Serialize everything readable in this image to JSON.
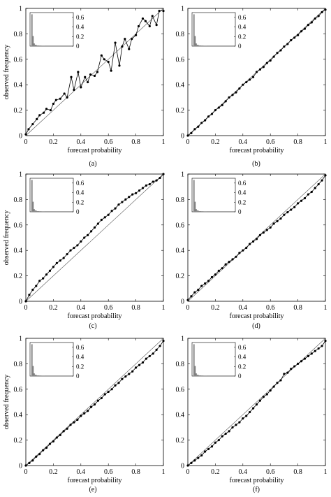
{
  "figure": {
    "panels": [
      {
        "caption": "(a)",
        "xlabel": "forecast probability",
        "ylabel": "observed frequency",
        "inset_ticks": [
          "0.6",
          "0.4",
          "0.2",
          "0"
        ],
        "chart_data": {
          "type": "line",
          "xlim": [
            0,
            1
          ],
          "ylim": [
            0,
            1
          ],
          "xticks": [
            "0",
            "0.2",
            "0.4",
            "0.6",
            "0.8",
            "1"
          ],
          "yticks": [
            "0",
            "0.2",
            "0.4",
            "0.6",
            "0.8",
            "1"
          ],
          "reference_line": "diagonal",
          "series": [
            {
              "x": [
                0.0,
                0.02,
                0.05,
                0.08,
                0.1,
                0.13,
                0.15,
                0.18,
                0.2,
                0.22,
                0.25,
                0.28,
                0.3,
                0.33,
                0.35,
                0.38,
                0.4,
                0.43,
                0.45,
                0.47,
                0.5,
                0.52,
                0.55,
                0.57,
                0.6,
                0.62,
                0.65,
                0.68,
                0.7,
                0.72,
                0.75,
                0.77,
                0.8,
                0.82,
                0.85,
                0.87,
                0.9,
                0.92,
                0.95,
                0.97,
                1.0
              ],
              "y": [
                0.01,
                0.05,
                0.09,
                0.13,
                0.16,
                0.18,
                0.21,
                0.2,
                0.25,
                0.28,
                0.29,
                0.33,
                0.3,
                0.46,
                0.36,
                0.5,
                0.38,
                0.46,
                0.42,
                0.48,
                0.47,
                0.5,
                0.63,
                0.6,
                0.58,
                0.51,
                0.73,
                0.55,
                0.7,
                0.76,
                0.68,
                0.76,
                0.79,
                0.86,
                0.92,
                0.9,
                0.86,
                0.94,
                0.87,
                0.98,
                0.98
              ]
            }
          ],
          "inset": {
            "type": "histogram",
            "ylim": [
              0,
              0.7
            ],
            "yticks": [
              "0",
              "0.2",
              "0.4",
              "0.6"
            ]
          }
        }
      },
      {
        "caption": "(b)",
        "xlabel": "forecast probability",
        "ylabel": "",
        "inset_ticks": [
          "0.6",
          "0.4",
          "0.2",
          "0"
        ],
        "chart_data": {
          "type": "line",
          "xlim": [
            0,
            1
          ],
          "ylim": [
            0,
            1
          ],
          "xticks": [
            "0",
            "0.2",
            "0.4",
            "0.6",
            "0.8",
            "1"
          ],
          "yticks": [
            "0",
            "0.2",
            "0.4",
            "0.6",
            "0.8",
            "1"
          ],
          "reference_line": "diagonal",
          "series": [
            {
              "x": [
                0.0,
                0.025,
                0.05,
                0.075,
                0.1,
                0.125,
                0.15,
                0.175,
                0.2,
                0.225,
                0.25,
                0.275,
                0.3,
                0.325,
                0.35,
                0.375,
                0.4,
                0.425,
                0.45,
                0.475,
                0.5,
                0.525,
                0.55,
                0.575,
                0.6,
                0.625,
                0.65,
                0.675,
                0.7,
                0.725,
                0.75,
                0.775,
                0.8,
                0.825,
                0.85,
                0.875,
                0.9,
                0.925,
                0.95,
                0.975,
                1.0
              ],
              "y": [
                0.0,
                0.02,
                0.05,
                0.07,
                0.1,
                0.12,
                0.15,
                0.17,
                0.2,
                0.22,
                0.24,
                0.27,
                0.3,
                0.32,
                0.34,
                0.37,
                0.4,
                0.42,
                0.44,
                0.46,
                0.5,
                0.52,
                0.54,
                0.57,
                0.59,
                0.62,
                0.65,
                0.67,
                0.7,
                0.72,
                0.75,
                0.77,
                0.79,
                0.82,
                0.84,
                0.87,
                0.89,
                0.92,
                0.94,
                0.97,
                0.99
              ]
            }
          ],
          "inset": {
            "type": "histogram",
            "ylim": [
              0,
              0.7
            ],
            "yticks": [
              "0",
              "0.2",
              "0.4",
              "0.6"
            ]
          }
        }
      },
      {
        "caption": "(c)",
        "xlabel": "forecast probability",
        "ylabel": "observed frequency",
        "inset_ticks": [
          "0.6",
          "0.4",
          "0.2",
          "0"
        ],
        "chart_data": {
          "type": "line",
          "xlim": [
            0,
            1
          ],
          "ylim": [
            0,
            1
          ],
          "xticks": [
            "0",
            "0.2",
            "0.4",
            "0.6",
            "0.8",
            "1"
          ],
          "yticks": [
            "0",
            "0.2",
            "0.4",
            "0.6",
            "0.8",
            "1"
          ],
          "reference_line": "diagonal",
          "series": [
            {
              "x": [
                0.0,
                0.025,
                0.05,
                0.075,
                0.1,
                0.125,
                0.15,
                0.175,
                0.2,
                0.225,
                0.25,
                0.275,
                0.3,
                0.325,
                0.35,
                0.375,
                0.4,
                0.425,
                0.45,
                0.475,
                0.5,
                0.525,
                0.55,
                0.575,
                0.6,
                0.625,
                0.65,
                0.675,
                0.7,
                0.725,
                0.75,
                0.775,
                0.8,
                0.825,
                0.85,
                0.875,
                0.9,
                0.925,
                0.95,
                0.975,
                1.0
              ],
              "y": [
                0.0,
                0.05,
                0.09,
                0.12,
                0.16,
                0.18,
                0.21,
                0.24,
                0.27,
                0.3,
                0.32,
                0.34,
                0.37,
                0.4,
                0.42,
                0.44,
                0.47,
                0.5,
                0.52,
                0.55,
                0.58,
                0.61,
                0.64,
                0.66,
                0.68,
                0.71,
                0.73,
                0.76,
                0.78,
                0.8,
                0.82,
                0.84,
                0.85,
                0.87,
                0.89,
                0.91,
                0.92,
                0.94,
                0.95,
                0.97,
                1.0
              ]
            }
          ],
          "inset": {
            "type": "histogram",
            "ylim": [
              0,
              0.7
            ],
            "yticks": [
              "0",
              "0.2",
              "0.4",
              "0.6"
            ]
          }
        }
      },
      {
        "caption": "(d)",
        "xlabel": "forecast probability",
        "ylabel": "",
        "inset_ticks": [
          "0.6",
          "0.4",
          "0.2",
          "0"
        ],
        "chart_data": {
          "type": "line",
          "xlim": [
            0,
            1
          ],
          "ylim": [
            0,
            1
          ],
          "xticks": [
            "0",
            "0.2",
            "0.4",
            "0.6",
            "0.8",
            "1"
          ],
          "yticks": [
            "0",
            "0.2",
            "0.4",
            "0.6",
            "0.8",
            "1"
          ],
          "reference_line": "diagonal",
          "series": [
            {
              "x": [
                0.0,
                0.025,
                0.05,
                0.075,
                0.1,
                0.125,
                0.15,
                0.175,
                0.2,
                0.225,
                0.25,
                0.275,
                0.3,
                0.325,
                0.35,
                0.375,
                0.4,
                0.425,
                0.45,
                0.475,
                0.5,
                0.525,
                0.55,
                0.575,
                0.6,
                0.625,
                0.65,
                0.675,
                0.7,
                0.725,
                0.75,
                0.775,
                0.8,
                0.825,
                0.85,
                0.875,
                0.9,
                0.925,
                0.95,
                0.975,
                1.0
              ],
              "y": [
                0.01,
                0.04,
                0.07,
                0.09,
                0.12,
                0.14,
                0.16,
                0.19,
                0.21,
                0.24,
                0.26,
                0.29,
                0.31,
                0.33,
                0.35,
                0.38,
                0.4,
                0.42,
                0.45,
                0.47,
                0.49,
                0.52,
                0.54,
                0.56,
                0.58,
                0.61,
                0.63,
                0.65,
                0.68,
                0.7,
                0.72,
                0.74,
                0.77,
                0.79,
                0.81,
                0.84,
                0.86,
                0.89,
                0.92,
                0.95,
                0.99
              ]
            }
          ],
          "inset": {
            "type": "histogram",
            "ylim": [
              0,
              0.7
            ],
            "yticks": [
              "0",
              "0.2",
              "0.4",
              "0.6"
            ]
          }
        }
      },
      {
        "caption": "(e)",
        "xlabel": "forecast probability",
        "ylabel": "observed frequency",
        "inset_ticks": [
          "0.6",
          "0.4",
          "0.2",
          "0"
        ],
        "chart_data": {
          "type": "line",
          "xlim": [
            0,
            1
          ],
          "ylim": [
            0,
            1
          ],
          "xticks": [
            "0",
            "0.2",
            "0.4",
            "0.6",
            "0.8",
            "1"
          ],
          "yticks": [
            "0",
            "0.2",
            "0.4",
            "0.6",
            "0.8",
            "1"
          ],
          "reference_line": "diagonal",
          "series": [
            {
              "x": [
                0.0,
                0.025,
                0.05,
                0.075,
                0.1,
                0.125,
                0.15,
                0.175,
                0.2,
                0.225,
                0.25,
                0.275,
                0.3,
                0.325,
                0.35,
                0.375,
                0.4,
                0.425,
                0.45,
                0.475,
                0.5,
                0.525,
                0.55,
                0.575,
                0.6,
                0.625,
                0.65,
                0.675,
                0.7,
                0.725,
                0.75,
                0.775,
                0.8,
                0.825,
                0.85,
                0.875,
                0.9,
                0.925,
                0.95,
                0.975,
                1.0
              ],
              "y": [
                0.0,
                0.02,
                0.04,
                0.07,
                0.09,
                0.12,
                0.14,
                0.17,
                0.19,
                0.22,
                0.24,
                0.27,
                0.29,
                0.32,
                0.34,
                0.36,
                0.39,
                0.41,
                0.43,
                0.46,
                0.48,
                0.51,
                0.53,
                0.56,
                0.58,
                0.6,
                0.63,
                0.65,
                0.68,
                0.7,
                0.72,
                0.74,
                0.77,
                0.79,
                0.81,
                0.84,
                0.86,
                0.88,
                0.91,
                0.94,
                0.98
              ]
            }
          ],
          "inset": {
            "type": "histogram",
            "ylim": [
              0,
              0.7
            ],
            "yticks": [
              "0",
              "0.2",
              "0.4",
              "0.6"
            ]
          }
        }
      },
      {
        "caption": "(f)",
        "xlabel": "forecast probability",
        "ylabel": "",
        "inset_ticks": [
          "0.6",
          "0.4",
          "0.2",
          "0"
        ],
        "chart_data": {
          "type": "line",
          "xlim": [
            0,
            1
          ],
          "ylim": [
            0,
            1
          ],
          "xticks": [
            "0",
            "0.2",
            "0.4",
            "0.6",
            "0.8",
            "1"
          ],
          "yticks": [
            "0",
            "0.2",
            "0.4",
            "0.6",
            "0.8",
            "1"
          ],
          "reference_line": "diagonal",
          "series": [
            {
              "x": [
                0.0,
                0.025,
                0.05,
                0.075,
                0.1,
                0.125,
                0.15,
                0.175,
                0.2,
                0.225,
                0.25,
                0.275,
                0.3,
                0.325,
                0.35,
                0.375,
                0.4,
                0.425,
                0.45,
                0.475,
                0.5,
                0.525,
                0.55,
                0.575,
                0.6,
                0.625,
                0.65,
                0.675,
                0.7,
                0.725,
                0.75,
                0.775,
                0.8,
                0.825,
                0.85,
                0.875,
                0.9,
                0.925,
                0.95,
                0.975,
                1.0
              ],
              "y": [
                0.0,
                0.02,
                0.04,
                0.06,
                0.08,
                0.11,
                0.13,
                0.15,
                0.18,
                0.2,
                0.23,
                0.25,
                0.27,
                0.3,
                0.32,
                0.34,
                0.37,
                0.39,
                0.42,
                0.45,
                0.48,
                0.51,
                0.54,
                0.56,
                0.59,
                0.62,
                0.65,
                0.67,
                0.72,
                0.73,
                0.76,
                0.78,
                0.8,
                0.82,
                0.84,
                0.86,
                0.88,
                0.9,
                0.92,
                0.94,
                0.98
              ]
            }
          ],
          "inset": {
            "type": "histogram",
            "ylim": [
              0,
              0.7
            ],
            "yticks": [
              "0",
              "0.2",
              "0.4",
              "0.6"
            ]
          }
        }
      }
    ]
  }
}
